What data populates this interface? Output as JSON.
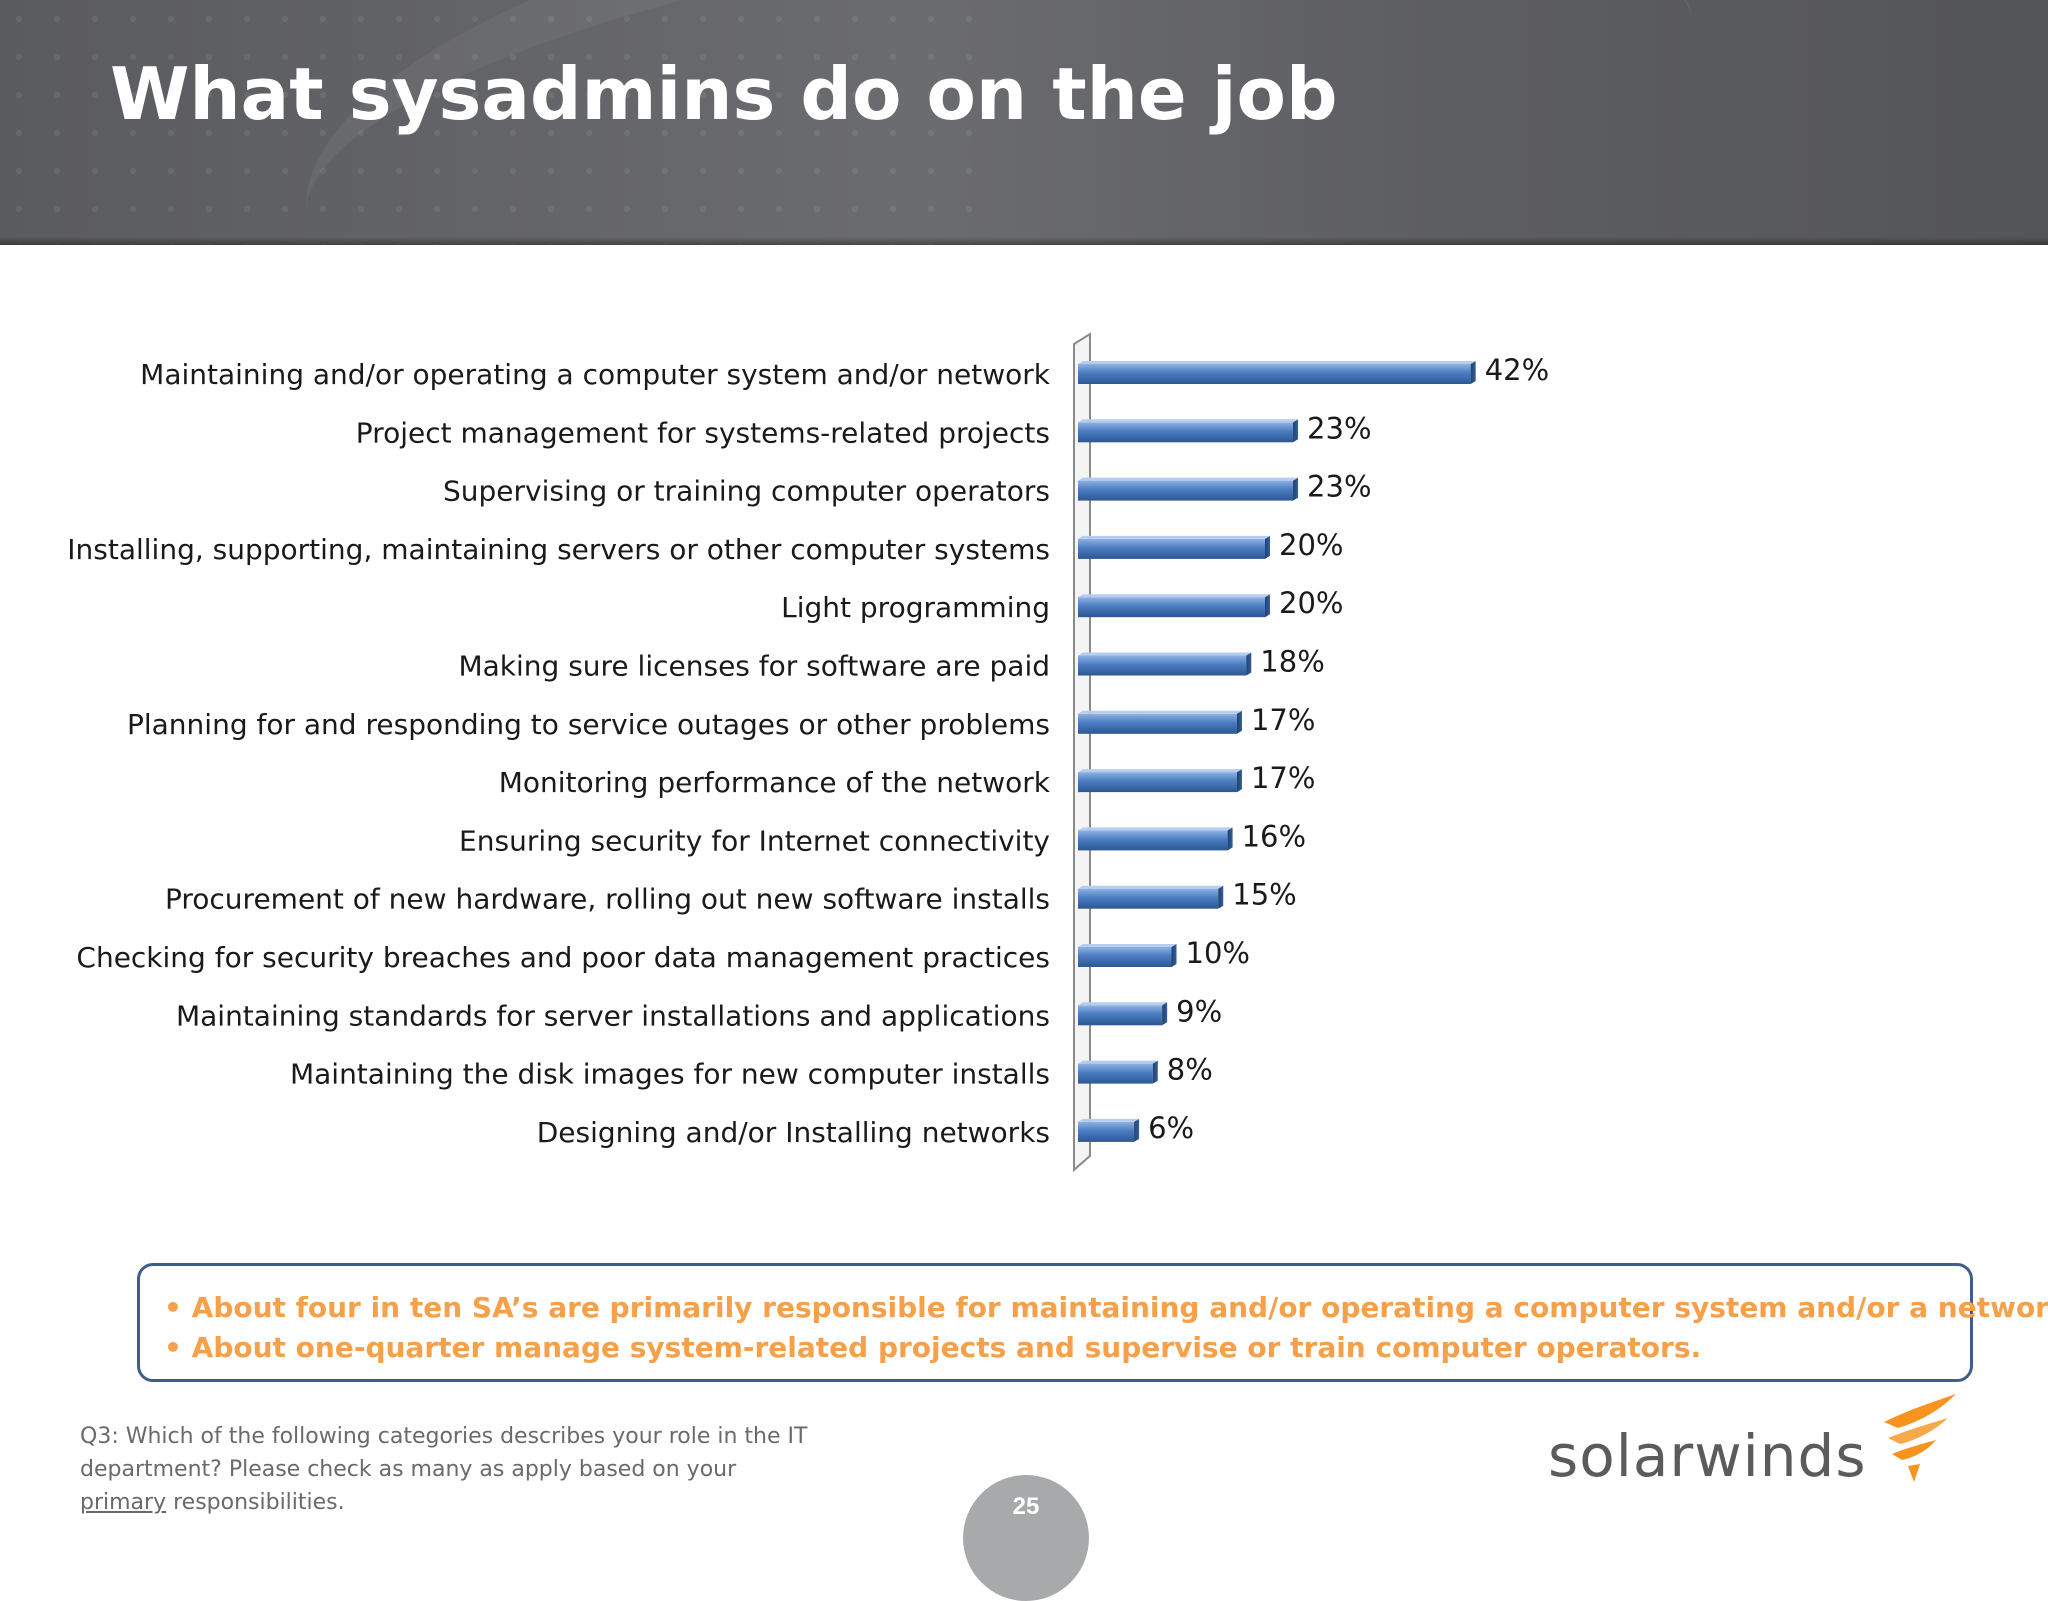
{
  "title": "What sysadmins do on the job",
  "chart_data": {
    "type": "bar",
    "orientation": "horizontal",
    "categories": [
      "Maintaining and/or operating a computer system and/or network",
      "Project management for systems-related projects",
      "Supervising or training computer operators",
      "Installing, supporting, maintaining servers or other computer systems",
      "Light programming",
      "Making sure licenses for software are paid",
      "Planning for and responding to service outages or other problems",
      "Monitoring performance of the network",
      "Ensuring security for Internet connectivity",
      "Procurement of new hardware, rolling out new software installs",
      "Checking for security breaches and poor data management practices",
      "Maintaining standards for server installations and applications",
      "Maintaining the disk images for new computer installs",
      "Designing and/or Installing networks"
    ],
    "values": [
      42,
      23,
      23,
      20,
      20,
      18,
      17,
      17,
      16,
      15,
      10,
      9,
      8,
      6
    ],
    "value_labels": [
      "42%",
      "23%",
      "23%",
      "20%",
      "20%",
      "18%",
      "17%",
      "17%",
      "16%",
      "15%",
      "10%",
      "9%",
      "8%",
      "6%"
    ],
    "unit": "%",
    "xlim": [
      0,
      100
    ],
    "grid": false,
    "legend": "none",
    "bar_color": "#4a7cc0"
  },
  "callout": {
    "lines": [
      "• About four in ten SA’s are primarily responsible for maintaining and/or operating a computer system and/or a network.",
      "• About one-quarter manage system-related projects and supervise or train computer operators."
    ],
    "color": "#f7a04a",
    "border_color": "#3f5f8a"
  },
  "footnote": {
    "text_before": "Q3: Which of the following categories describes your role in the IT department?  Please check as many as apply based on your ",
    "underlined": "primary",
    "text_after": " responsibilities."
  },
  "page_number": "25",
  "logo": {
    "text": "solarwinds",
    "icon": "solarwinds-swoosh-icon",
    "icon_color": "#f7931e"
  }
}
